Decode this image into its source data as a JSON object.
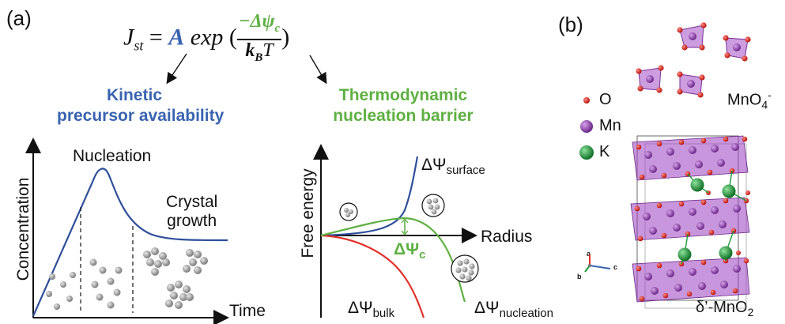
{
  "panel_a": {
    "label": "(a)",
    "formula": {
      "lhs": "J",
      "lhs_sub": "st",
      "equals": "=",
      "prefactor": "A",
      "exp": "exp",
      "numerator": "−Δψ",
      "numerator_sub": "c",
      "denominator": "k",
      "denominator_sub": "B",
      "denominator_tail": "T"
    },
    "kinetic_label_line1": "Kinetic",
    "kinetic_label_line2": "precursor availability",
    "thermo_label_line1": "Thermodynamic",
    "thermo_label_line2": "nucleation barrier",
    "left_plot": {
      "ylabel": "Concentration",
      "xlabel": "Time",
      "nucleation": "Nucleation",
      "growth_line1": "Crystal",
      "growth_line2": "growth"
    },
    "right_plot": {
      "ylabel": "Free energy",
      "xlabel": "Radius",
      "surface": "ΔΨ",
      "surface_sub": "surface",
      "bulk": "ΔΨ",
      "bulk_sub": "bulk",
      "nucleation": "ΔΨ",
      "nucleation_sub": "nucleation",
      "critical": "ΔΨ",
      "critical_sub": "c"
    }
  },
  "panel_b": {
    "label": "(b)",
    "legend": {
      "o": "O",
      "mn": "Mn",
      "k": "K"
    },
    "anion": "MnO",
    "anion_sub": "4",
    "anion_sup": "-",
    "phase": "δ’-MnO",
    "phase_sub": "2",
    "axes": {
      "a": "a",
      "b": "b",
      "c": "c"
    }
  },
  "colors": {
    "kinetic_blue": "#3a63b0",
    "thermo_green": "#5fb043",
    "bulk_red": "#e0322b",
    "mn_purple": "#8a3fa8",
    "o_red": "#d6231e",
    "k_green": "#1f9a3a"
  }
}
